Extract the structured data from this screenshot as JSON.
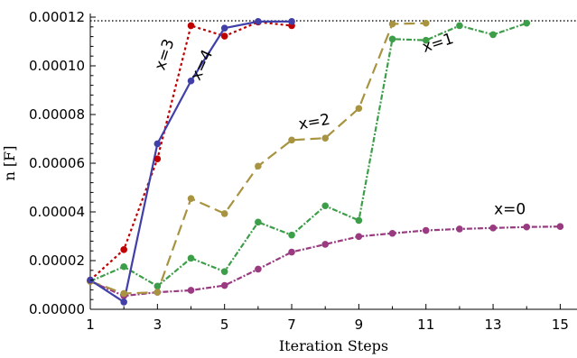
{
  "chart_data": {
    "type": "line",
    "xlabel": "Iteration Steps",
    "ylabel": "n [F]",
    "xlim": [
      1,
      15.5
    ],
    "ylim": [
      0,
      0.00012
    ],
    "x_ticks": [
      1,
      3,
      5,
      7,
      9,
      11,
      13,
      15
    ],
    "x_tick_labels": [
      "1",
      "3",
      "5",
      "7",
      "9",
      "11",
      "13",
      "15"
    ],
    "y_ticks": [
      0,
      2e-05,
      4e-05,
      6e-05,
      8e-05,
      0.0001,
      0.00012
    ],
    "y_tick_labels": [
      "0.00000",
      "0.00002",
      "0.00004",
      "0.00006",
      "0.00008",
      "0.00010",
      "0.00012"
    ],
    "reference_line": {
      "y": 0.0001185,
      "style": "dotted",
      "color": "#000000"
    },
    "series": [
      {
        "key": "x0",
        "color": "#9a3a80",
        "dash": "6,2,2,2",
        "x": [
          1,
          2,
          3,
          4,
          5,
          6,
          7,
          8,
          9,
          10,
          11,
          12,
          13,
          14,
          15
        ],
        "y": [
          1.15e-05,
          5.5e-06,
          7e-06,
          7.8e-06,
          9.8e-06,
          1.65e-05,
          2.35e-05,
          2.67e-05,
          2.99e-05,
          3.12e-05,
          3.24e-05,
          3.3e-05,
          3.34e-05,
          3.38e-05,
          3.4e-05
        ]
      },
      {
        "key": "x1",
        "color": "#3d9e4a",
        "dash": "6,2,2,2",
        "x": [
          1,
          2,
          3,
          4,
          5,
          6,
          7,
          8,
          9,
          10,
          11,
          12,
          13,
          14
        ],
        "y": [
          1.15e-05,
          1.75e-05,
          9.5e-06,
          2.1e-05,
          1.55e-05,
          3.58e-05,
          3.05e-05,
          4.25e-05,
          3.65e-05,
          0.000111,
          0.0001105,
          0.0001165,
          0.0001128,
          0.0001175
        ]
      },
      {
        "key": "x2",
        "color": "#a89340",
        "dash": "12,6",
        "x": [
          1,
          2,
          3,
          4,
          5,
          6,
          7,
          8,
          9,
          10,
          11
        ],
        "y": [
          1.15e-05,
          6.5e-06,
          7e-06,
          4.55e-05,
          3.93e-05,
          5.88e-05,
          6.95e-05,
          7.03e-05,
          8.25e-05,
          0.0001172,
          0.0001175
        ]
      },
      {
        "key": "x3",
        "color": "#c00000",
        "dash": "3,3",
        "x": [
          1,
          2,
          3,
          4,
          5,
          6,
          7
        ],
        "y": [
          1.2e-05,
          2.45e-05,
          6.18e-05,
          0.0001165,
          0.0001122,
          0.000118,
          0.0001165
        ]
      },
      {
        "key": "x4",
        "color": "#4040a8",
        "dash": "",
        "x": [
          1,
          2,
          3,
          4,
          5,
          6,
          7
        ],
        "y": [
          1.2e-05,
          3e-06,
          6.8e-05,
          9.38e-05,
          0.0001155,
          0.0001182,
          0.0001182
        ]
      }
    ],
    "annotations": [
      {
        "text": "x=0",
        "x": 13.5,
        "y": 3.9e-05,
        "rotate": 0
      },
      {
        "text": "x=1",
        "x": 11.4,
        "y": 0.0001075,
        "rotate": -18
      },
      {
        "text": "x=2",
        "x": 7.7,
        "y": 7.5e-05,
        "rotate": -10
      },
      {
        "text": "x=3",
        "x": 3.35,
        "y": 0.000104,
        "rotate": -72
      },
      {
        "text": "x=4",
        "x": 4.45,
        "y": 9.95e-05,
        "rotate": -65
      }
    ]
  }
}
